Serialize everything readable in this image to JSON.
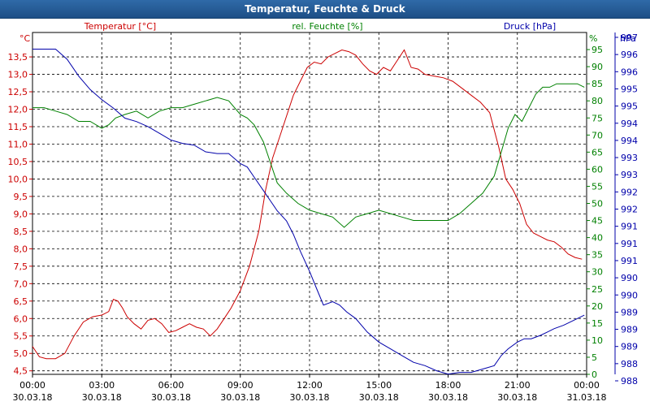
{
  "window": {
    "title": "Temperatur, Feuchte & Druck"
  },
  "colors": {
    "temp": "#cc0000",
    "hum": "#008000",
    "press": "#0000aa",
    "grid": "#000000",
    "frame": "#000000"
  },
  "chart_data": {
    "type": "line",
    "title": "Temperatur, Feuchte & Druck",
    "x_range": [
      0,
      24
    ],
    "x_ticks": [
      {
        "x": 0,
        "time": "00:00",
        "date": "30.03.18"
      },
      {
        "x": 3,
        "time": "03:00",
        "date": "30.03.18"
      },
      {
        "x": 6,
        "time": "06:00",
        "date": "30.03.18"
      },
      {
        "x": 9,
        "time": "09:00",
        "date": "30.03.18"
      },
      {
        "x": 12,
        "time": "12:00",
        "date": "30.03.18"
      },
      {
        "x": 15,
        "time": "15:00",
        "date": "30.03.18"
      },
      {
        "x": 18,
        "time": "18:00",
        "date": "30.03.18"
      },
      {
        "x": 21,
        "time": "21:00",
        "date": "30.03.18"
      },
      {
        "x": 24,
        "time": "00:00",
        "date": "31.03.18"
      }
    ],
    "axes": {
      "temp": {
        "unit": "°C",
        "label": "Temperatur [°C]",
        "range": [
          4.4,
          14.2
        ],
        "ticks": [
          "4,5",
          "5,0",
          "5,5",
          "6,0",
          "6,5",
          "7,0",
          "7,5",
          "8,0",
          "8,5",
          "9,0",
          "9,5",
          "10,0",
          "10,5",
          "11,0",
          "11,5",
          "12,0",
          "12,5",
          "13,0",
          "13,5"
        ]
      },
      "hum": {
        "unit": "%",
        "label": "rel. Feuchte [%]",
        "range": [
          0,
          100
        ],
        "ticks": [
          "0",
          "5",
          "10",
          "15",
          "20",
          "25",
          "30",
          "35",
          "40",
          "45",
          "50",
          "55",
          "60",
          "65",
          "70",
          "75",
          "80",
          "85",
          "90",
          "95"
        ]
      },
      "press": {
        "unit": "hPa",
        "label": "Druck [hPa]",
        "range": [
          987.55,
          997.75
        ],
        "ticks": [
          "988",
          "988",
          "989",
          "989",
          "989",
          "990",
          "990",
          "991",
          "991",
          "991",
          "992",
          "992",
          "993",
          "993",
          "994",
          "994",
          "995",
          "995",
          "996",
          "996",
          "997"
        ]
      }
    },
    "series": [
      {
        "name": "Temperatur",
        "axis": "temp",
        "x": [
          0,
          0.3,
          0.6,
          1,
          1.4,
          1.8,
          2.2,
          2.6,
          3,
          3.3,
          3.5,
          3.7,
          3.9,
          4.1,
          4.4,
          4.7,
          5,
          5.3,
          5.6,
          5.9,
          6.2,
          6.5,
          6.8,
          7.1,
          7.4,
          7.7,
          8,
          8.3,
          8.6,
          9,
          9.4,
          9.8,
          10.1,
          10.4,
          10.7,
          11,
          11.3,
          11.6,
          11.9,
          12.2,
          12.5,
          12.8,
          13.1,
          13.4,
          13.7,
          14,
          14.3,
          14.6,
          14.9,
          15.2,
          15.5,
          15.8,
          16.1,
          16.4,
          16.7,
          17,
          17.4,
          17.8,
          18.2,
          18.6,
          19,
          19.4,
          19.8,
          20.2,
          20.5,
          20.8,
          21.1,
          21.4,
          21.7,
          22,
          22.3,
          22.6,
          22.9,
          23.2,
          23.5,
          23.8
        ],
        "values": [
          5.2,
          4.9,
          4.85,
          4.85,
          5.0,
          5.5,
          5.9,
          6.05,
          6.1,
          6.2,
          6.55,
          6.5,
          6.3,
          6.05,
          5.85,
          5.7,
          5.95,
          6.0,
          5.85,
          5.6,
          5.65,
          5.75,
          5.85,
          5.75,
          5.7,
          5.5,
          5.7,
          6.0,
          6.3,
          6.8,
          7.5,
          8.5,
          9.7,
          10.6,
          11.2,
          11.8,
          12.4,
          12.8,
          13.2,
          13.35,
          13.3,
          13.5,
          13.6,
          13.7,
          13.65,
          13.55,
          13.3,
          13.1,
          13.0,
          13.2,
          13.1,
          13.4,
          13.7,
          13.2,
          13.15,
          13.0,
          12.95,
          12.9,
          12.8,
          12.6,
          12.4,
          12.2,
          11.9,
          10.9,
          10.0,
          9.7,
          9.3,
          8.7,
          8.45,
          8.35,
          8.25,
          8.2,
          8.05,
          7.85,
          7.75,
          7.7
        ]
      },
      {
        "name": "rel. Feuchte",
        "axis": "hum",
        "x": [
          0,
          0.5,
          1,
          1.5,
          2,
          2.5,
          3,
          3.3,
          3.6,
          4,
          4.5,
          5,
          5.5,
          6,
          6.5,
          7,
          7.5,
          8,
          8.5,
          9,
          9.3,
          9.6,
          10,
          10.3,
          10.6,
          11,
          11.5,
          12,
          12.5,
          13,
          13.5,
          14,
          14.5,
          15,
          15.5,
          16,
          16.5,
          17,
          17.5,
          18,
          18.5,
          19,
          19.5,
          20,
          20.3,
          20.6,
          20.9,
          21.2,
          21.5,
          21.8,
          22.1,
          22.4,
          22.7,
          23,
          23.3,
          23.6,
          23.9
        ],
        "values": [
          78,
          78,
          77,
          76,
          74,
          74,
          72,
          73,
          75,
          76,
          77,
          75,
          77,
          78,
          78,
          79,
          80,
          81,
          80,
          76,
          75,
          73,
          68,
          62,
          56,
          53,
          50,
          48,
          47,
          46,
          43,
          46,
          47,
          48,
          47,
          46,
          45,
          45,
          45,
          45,
          47,
          50,
          53,
          58,
          65,
          72,
          76,
          74,
          78,
          82,
          84,
          84,
          85,
          85,
          85,
          85,
          84
        ]
      },
      {
        "name": "Druck",
        "axis": "press",
        "x": [
          0,
          0.5,
          1,
          1.5,
          2,
          2.5,
          3,
          3.5,
          4,
          4.5,
          5,
          5.5,
          6,
          6.5,
          7,
          7.5,
          8,
          8.5,
          9,
          9.3,
          9.6,
          10,
          10.3,
          10.6,
          11,
          11.3,
          11.6,
          12,
          12.3,
          12.6,
          13,
          13.3,
          13.6,
          14,
          14.5,
          15,
          15.5,
          16,
          16.5,
          17,
          17.5,
          18,
          18.5,
          19,
          19.5,
          20,
          20.3,
          20.6,
          21,
          21.3,
          21.6,
          22,
          22.3,
          22.6,
          23,
          23.3,
          23.6,
          23.9
        ],
        "values": [
          997.4,
          997.4,
          997.4,
          997.1,
          996.6,
          996.2,
          995.9,
          995.65,
          995.35,
          995.25,
          995.1,
          994.9,
          994.7,
          994.6,
          994.55,
          994.35,
          994.3,
          994.3,
          994.0,
          993.9,
          993.6,
          993.2,
          992.9,
          992.6,
          992.3,
          991.9,
          991.4,
          990.8,
          990.3,
          989.8,
          989.9,
          989.8,
          989.6,
          989.4,
          989.0,
          988.7,
          988.5,
          988.3,
          988.1,
          988.0,
          987.85,
          987.75,
          987.8,
          987.8,
          987.9,
          988.0,
          988.3,
          988.5,
          988.7,
          988.8,
          988.8,
          988.9,
          989.0,
          989.1,
          989.2,
          989.3,
          989.4,
          989.5
        ]
      }
    ]
  }
}
